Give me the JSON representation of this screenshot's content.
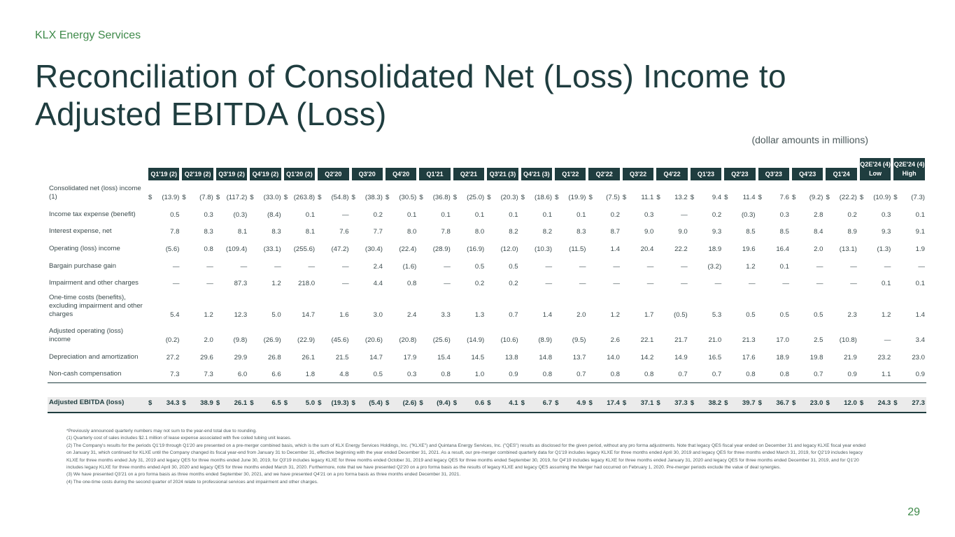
{
  "company": "KLX Energy Services",
  "title": "Reconciliation of Consolidated Net (Loss) Income to Adjusted EBITDA (Loss)",
  "subtitle": "(dollar amounts in millions)",
  "columns": [
    "Q1'19 (2)",
    "Q2'19 (2)",
    "Q3'19 (2)",
    "Q4'19 (2)",
    "Q1'20 (2)",
    "Q2'20",
    "Q3'20",
    "Q4'20",
    "Q1'21",
    "Q2'21",
    "Q3'21 (3)",
    "Q4'21 (3)",
    "Q1'22",
    "Q2'22",
    "Q3'22",
    "Q4'22",
    "Q1'23",
    "Q2'23",
    "Q3'23",
    "Q4'23",
    "Q1'24",
    "Q2E'24 (4) Low",
    "Q2E'24 (4) High"
  ],
  "rows": [
    {
      "label": "Consolidated net (loss) income (1)",
      "dollar": true,
      "values": [
        "(13.9)",
        "(7.8)",
        "(117.2)",
        "(33.0)",
        "(263.8)",
        "(54.8)",
        "(38.3)",
        "(30.5)",
        "(36.8)",
        "(25.0)",
        "(20.3)",
        "(18.6)",
        "(19.9)",
        "(7.5)",
        "11.1",
        "13.2",
        "9.4",
        "11.4",
        "7.6",
        "(9.2)",
        "(22.2)",
        "(10.9)",
        "(7.3)"
      ]
    },
    {
      "label": "Income tax expense (benefit)",
      "values": [
        "0.5",
        "0.3",
        "(0.3)",
        "(8.4)",
        "0.1",
        "—",
        "0.2",
        "0.1",
        "0.1",
        "0.1",
        "0.1",
        "0.1",
        "0.1",
        "0.2",
        "0.3",
        "—",
        "0.2",
        "(0.3)",
        "0.3",
        "2.8",
        "0.2",
        "0.3",
        "0.1"
      ]
    },
    {
      "label": "Interest expense, net",
      "values": [
        "7.8",
        "8.3",
        "8.1",
        "8.3",
        "8.1",
        "7.6",
        "7.7",
        "8.0",
        "7.8",
        "8.0",
        "8.2",
        "8.2",
        "8.3",
        "8.7",
        "9.0",
        "9.0",
        "9.3",
        "8.5",
        "8.5",
        "8.4",
        "8.9",
        "9.3",
        "9.1"
      ]
    },
    {
      "label": "Operating (loss) income",
      "values": [
        "(5.6)",
        "0.8",
        "(109.4)",
        "(33.1)",
        "(255.6)",
        "(47.2)",
        "(30.4)",
        "(22.4)",
        "(28.9)",
        "(16.9)",
        "(12.0)",
        "(10.3)",
        "(11.5)",
        "1.4",
        "20.4",
        "22.2",
        "18.9",
        "19.6",
        "16.4",
        "2.0",
        "(13.1)",
        "(1.3)",
        "1.9"
      ]
    },
    {
      "label": "Bargain purchase gain",
      "values": [
        "—",
        "—",
        "—",
        "—",
        "—",
        "—",
        "2.4",
        "(1.6)",
        "—",
        "0.5",
        "0.5",
        "—",
        "—",
        "—",
        "—",
        "—",
        "(3.2)",
        "1.2",
        "0.1",
        "—",
        "—",
        "—",
        "—"
      ]
    },
    {
      "label": "Impairment and other charges",
      "values": [
        "—",
        "—",
        "87.3",
        "1.2",
        "218.0",
        "—",
        "4.4",
        "0.8",
        "—",
        "0.2",
        "0.2",
        "—",
        "—",
        "—",
        "—",
        "—",
        "—",
        "—",
        "—",
        "—",
        "—",
        "0.1",
        "0.1"
      ]
    },
    {
      "label": "One-time costs (benefits), excluding impairment and other charges",
      "values": [
        "5.4",
        "1.2",
        "12.3",
        "5.0",
        "14.7",
        "1.6",
        "3.0",
        "2.4",
        "3.3",
        "1.3",
        "0.7",
        "1.4",
        "2.0",
        "1.2",
        "1.7",
        "(0.5)",
        "5.3",
        "0.5",
        "0.5",
        "0.5",
        "2.3",
        "1.2",
        "1.4"
      ]
    },
    {
      "label": "Adjusted operating (loss) income",
      "values": [
        "(0.2)",
        "2.0",
        "(9.8)",
        "(26.9)",
        "(22.9)",
        "(45.6)",
        "(20.6)",
        "(20.8)",
        "(25.6)",
        "(14.9)",
        "(10.6)",
        "(8.9)",
        "(9.5)",
        "2.6",
        "22.1",
        "21.7",
        "21.0",
        "21.3",
        "17.0",
        "2.5",
        "(10.8)",
        "—",
        "3.4"
      ]
    },
    {
      "label": "Depreciation and amortization",
      "values": [
        "27.2",
        "29.6",
        "29.9",
        "26.8",
        "26.1",
        "21.5",
        "14.7",
        "17.9",
        "15.4",
        "14.5",
        "13.8",
        "14.8",
        "13.7",
        "14.0",
        "14.2",
        "14.9",
        "16.5",
        "17.6",
        "18.9",
        "19.8",
        "21.9",
        "23.2",
        "23.0"
      ]
    },
    {
      "label": "Non-cash compensation",
      "values": [
        "7.3",
        "7.3",
        "6.0",
        "6.6",
        "1.8",
        "4.8",
        "0.5",
        "0.3",
        "0.8",
        "1.0",
        "0.9",
        "0.8",
        "0.7",
        "0.8",
        "0.8",
        "0.7",
        "0.7",
        "0.8",
        "0.8",
        "0.7",
        "0.9",
        "1.1",
        "0.9"
      ]
    }
  ],
  "total": {
    "label": "Adjusted EBITDA (loss)",
    "values": [
      "34.3",
      "38.9",
      "26.1",
      "6.5",
      "5.0",
      "(19.3)",
      "(5.4)",
      "(2.6)",
      "(9.4)",
      "0.6",
      "4.1",
      "6.7",
      "4.9",
      "17.4",
      "37.1",
      "37.3",
      "38.2",
      "39.7",
      "36.7",
      "23.0",
      "12.0",
      "24.3",
      "27.3"
    ]
  },
  "footnotes": [
    "*Previously announced quarterly numbers may not sum to the year-end total due to rounding.",
    "(1) Quarterly cost of sales includes $2.1 million of lease expense associated with five coiled tubing unit leases.",
    "(2) The Company's results for the periods Q1'19 through Q1'20 are presented on a pre-merger combined basis, which is the sum of KLX Energy Services Holdings, Inc. (\"KLXE\") and Quintana Energy Services, Inc. (\"QES\") results as disclosed for the given period, without any pro forma adjustments. Note that legacy QES fiscal year ended on December 31 and legacy KLXE fiscal year ended on January 31, which continued for KLXE until the Company changed its fiscal year-end from January 31 to December 31, effective beginning with the year ended December 31, 2021. As a result, our pre-merger combined quarterly data for Q1'19 includes legacy KLXE for three months ended April 30, 2019 and legacy QES for three months ended March 31, 2019, for Q2'19 includes legacy KLXE for three months ended July 31, 2019 and legacy QES for three months ended June 30, 2019, for Q3'19 includes legacy KLXE for three months ended October 31, 2019 and legacy QES for three months ended September 30, 2019, for Q4'19 includes legacy KLXE for three months ended January 31, 2020 and legacy QES for three months ended December 31, 2019, and for Q1'20 includes legacy KLXE for three months ended April 30, 2020 and legacy QES for three months ended March 31, 2020. Furthermore, note that we have presented Q2'20 on a pro forma basis as the results of legacy KLXE and legacy QES assuming the Merger had occurred on February 1, 2020. Pre-merger periods exclude the value of deal synergies.",
    "(3) We have presented Q3'21 on a pro forma basis as three months ended September 30, 2021, and we have presented Q4'21 on a pro forma basis as three months ended December 31, 2021.",
    "(4) The one-time costs during the second quarter of 2024 relate to professional services and impairment and other charges."
  ],
  "page_number": "29",
  "colors": {
    "header_bg": "#1f3d3f",
    "accent": "#3f8a4a",
    "total_bg": "#ebebeb"
  }
}
